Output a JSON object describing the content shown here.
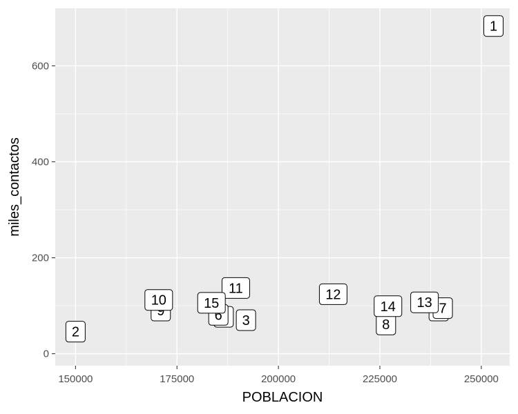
{
  "chart_data": {
    "type": "scatter",
    "title": "",
    "xlabel": "POBLACION",
    "ylabel": "miles_contactos",
    "xlim": [
      145000,
      257000
    ],
    "ylim": [
      -25,
      720
    ],
    "x_ticks": [
      150000,
      175000,
      200000,
      225000,
      250000
    ],
    "x_tick_labels": [
      "150000",
      "175000",
      "200000",
      "225000",
      "250000"
    ],
    "y_ticks": [
      0,
      200,
      400,
      600
    ],
    "y_tick_labels": [
      "0",
      "200",
      "400",
      "600"
    ],
    "grid": true,
    "legend": "none",
    "points": [
      {
        "label": "1",
        "x": 253000,
        "y": 683
      },
      {
        "label": "2",
        "x": 150000,
        "y": 46
      },
      {
        "label": "3",
        "x": 192000,
        "y": 70
      },
      {
        "label": "4",
        "x": 239500,
        "y": 90
      },
      {
        "label": "5",
        "x": 186500,
        "y": 77
      },
      {
        "label": "6",
        "x": 185200,
        "y": 81
      },
      {
        "label": "7",
        "x": 240500,
        "y": 95
      },
      {
        "label": "8",
        "x": 226500,
        "y": 61
      },
      {
        "label": "9",
        "x": 171000,
        "y": 90
      },
      {
        "label": "10",
        "x": 170500,
        "y": 112
      },
      {
        "label": "11",
        "x": 189500,
        "y": 137
      },
      {
        "label": "12",
        "x": 213500,
        "y": 124
      },
      {
        "label": "13",
        "x": 236000,
        "y": 107
      },
      {
        "label": "14",
        "x": 227000,
        "y": 99
      },
      {
        "label": "15",
        "x": 183500,
        "y": 106
      }
    ]
  },
  "colors": {
    "panel_bg": "#ebebeb",
    "grid_major": "#ffffff",
    "label_fill": "#ffffff",
    "label_border": "#000000",
    "tick_text": "#4d4d4d"
  }
}
